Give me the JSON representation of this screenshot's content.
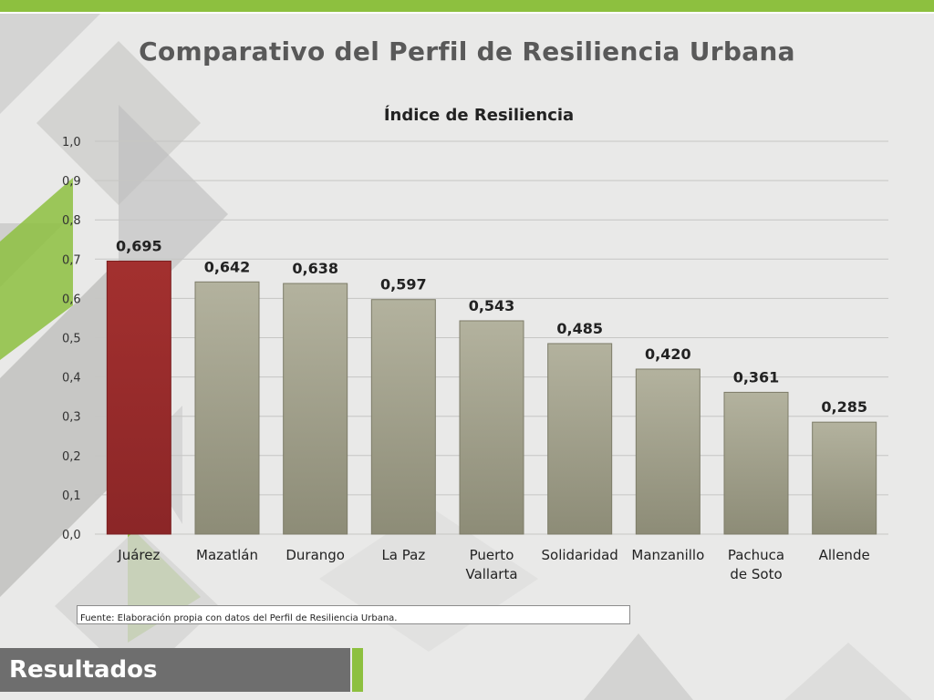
{
  "page": {
    "title": "Comparativo del Perfil de Resiliencia Urbana",
    "source": "Fuente: Elaboración propia con datos del Perfil de Resiliencia Urbana.",
    "footer_label": "Resultados"
  },
  "colors": {
    "accent_green": "#8dc03f",
    "highlight_bar": "#992d2e",
    "bar": "#a3a28d",
    "footer": "#6e6e6e"
  },
  "chart_data": {
    "type": "bar",
    "title": "Índice de Resiliencia",
    "categories": [
      "Juárez",
      "Mazatlán",
      "Durango",
      "La Paz",
      "Puerto Vallarta",
      "Solidaridad",
      "Manzanillo",
      "Pachuca de Soto",
      "Allende"
    ],
    "category_lines": [
      [
        "Juárez"
      ],
      [
        "Mazatlán"
      ],
      [
        "Durango"
      ],
      [
        "La Paz"
      ],
      [
        "Puerto",
        "Vallarta"
      ],
      [
        "Solidaridad"
      ],
      [
        "Manzanillo"
      ],
      [
        "Pachuca",
        "de Soto"
      ],
      [
        "Allende"
      ]
    ],
    "values": [
      0.695,
      0.642,
      0.638,
      0.597,
      0.543,
      0.485,
      0.42,
      0.361,
      0.285
    ],
    "data_labels": [
      "0,695",
      "0,642",
      "0,638",
      "0,597",
      "0,543",
      "0,485",
      "0,420",
      "0,361",
      "0,285"
    ],
    "highlight_index": 0,
    "ylim": [
      0,
      1.0
    ],
    "yticks": [
      "0,0",
      "0,1",
      "0,2",
      "0,3",
      "0,4",
      "0,5",
      "0,6",
      "0,7",
      "0,8",
      "0,9",
      "1,0"
    ],
    "xlabel": "",
    "ylabel": "",
    "grid": true,
    "legend": "none"
  }
}
